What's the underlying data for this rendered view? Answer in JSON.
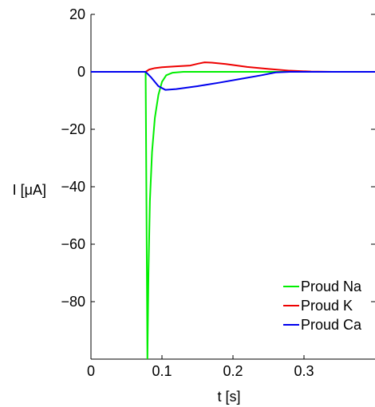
{
  "chart_data": {
    "type": "line",
    "title": "",
    "xlabel": "t [s]",
    "ylabel": "I [μA]",
    "xlim": [
      0,
      0.4
    ],
    "ylim": [
      -100,
      20
    ],
    "x_ticks": [
      0,
      0.1,
      0.2,
      0.3
    ],
    "x_tick_labels": [
      "0",
      "0.1",
      "0.2",
      "0.3"
    ],
    "y_ticks": [
      20,
      0,
      -20,
      -40,
      -60,
      -80
    ],
    "y_tick_labels": [
      "20",
      "0",
      "−20",
      "−40",
      "−60",
      "−80"
    ],
    "grid": false,
    "legend_position": "bottom-right",
    "series": [
      {
        "name": "Proud Na",
        "color": "#00ee00",
        "points": [
          [
            0,
            0
          ],
          [
            0.077,
            0
          ],
          [
            0.0785,
            -60
          ],
          [
            0.0795,
            -100
          ],
          [
            0.081,
            -70
          ],
          [
            0.083,
            -45
          ],
          [
            0.086,
            -28
          ],
          [
            0.09,
            -16
          ],
          [
            0.095,
            -8
          ],
          [
            0.1,
            -3.5
          ],
          [
            0.106,
            -1.2
          ],
          [
            0.115,
            -0.3
          ],
          [
            0.13,
            0
          ],
          [
            0.4,
            0
          ]
        ]
      },
      {
        "name": "Proud K",
        "color": "#ee0000",
        "points": [
          [
            0,
            0
          ],
          [
            0.077,
            0
          ],
          [
            0.082,
            0.8
          ],
          [
            0.09,
            1.3
          ],
          [
            0.1,
            1.6
          ],
          [
            0.12,
            1.9
          ],
          [
            0.14,
            2.2
          ],
          [
            0.15,
            2.8
          ],
          [
            0.16,
            3.3
          ],
          [
            0.17,
            3.2
          ],
          [
            0.19,
            2.7
          ],
          [
            0.22,
            1.7
          ],
          [
            0.25,
            1.0
          ],
          [
            0.28,
            0.4
          ],
          [
            0.31,
            0.1
          ],
          [
            0.34,
            0
          ],
          [
            0.4,
            0
          ]
        ]
      },
      {
        "name": "Proud Ca",
        "color": "#0000ee",
        "points": [
          [
            0,
            0
          ],
          [
            0.077,
            0
          ],
          [
            0.085,
            -2
          ],
          [
            0.095,
            -5
          ],
          [
            0.105,
            -6.3
          ],
          [
            0.12,
            -6
          ],
          [
            0.15,
            -5
          ],
          [
            0.18,
            -3.8
          ],
          [
            0.21,
            -2.5
          ],
          [
            0.24,
            -1.2
          ],
          [
            0.26,
            -0.2
          ],
          [
            0.28,
            0
          ],
          [
            0.4,
            0
          ]
        ]
      }
    ]
  }
}
